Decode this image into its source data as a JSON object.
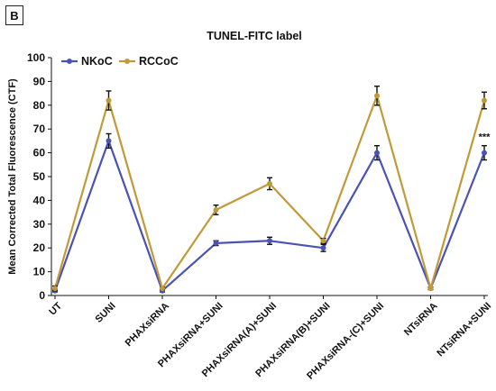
{
  "panel_label": "B",
  "chart_data": {
    "type": "line",
    "title": "TUNEL-FITC label",
    "xlabel": "",
    "ylabel": "Mean Corrected Total Fluorescence (CTF)",
    "ylim": [
      0,
      100
    ],
    "yticks": [
      0,
      10,
      20,
      30,
      40,
      50,
      60,
      70,
      80,
      90,
      100
    ],
    "grid": false,
    "legend_position": "top-left",
    "categories": [
      "UT",
      "SUNI",
      "PHAXsiRNA",
      "PHAXsiRNA+SUNI",
      "PHAXsiRNA(A)+SUNI",
      "PHAXsiRNA(B)+SUNI",
      "PHAXsiRNA-(C)+SUNI",
      "NTsiRNA",
      "NTsiRNA+SUNI"
    ],
    "series": [
      {
        "name": "NKoC",
        "color": "#4a52b5",
        "values": [
          2,
          65,
          2,
          22,
          23,
          20,
          60,
          3,
          60
        ],
        "errors": [
          0.5,
          3,
          0.5,
          1,
          1.5,
          1.5,
          3,
          0.5,
          3
        ]
      },
      {
        "name": "RCCoC",
        "color": "#c19a38",
        "values": [
          3,
          82,
          3,
          36,
          47,
          23,
          84,
          3,
          82
        ],
        "errors": [
          1,
          4,
          0.5,
          2,
          2.5,
          1,
          4,
          0.5,
          3.5
        ]
      }
    ],
    "annotations": [
      {
        "category": "NTsiRNA+SUNI",
        "text": "***"
      }
    ]
  }
}
